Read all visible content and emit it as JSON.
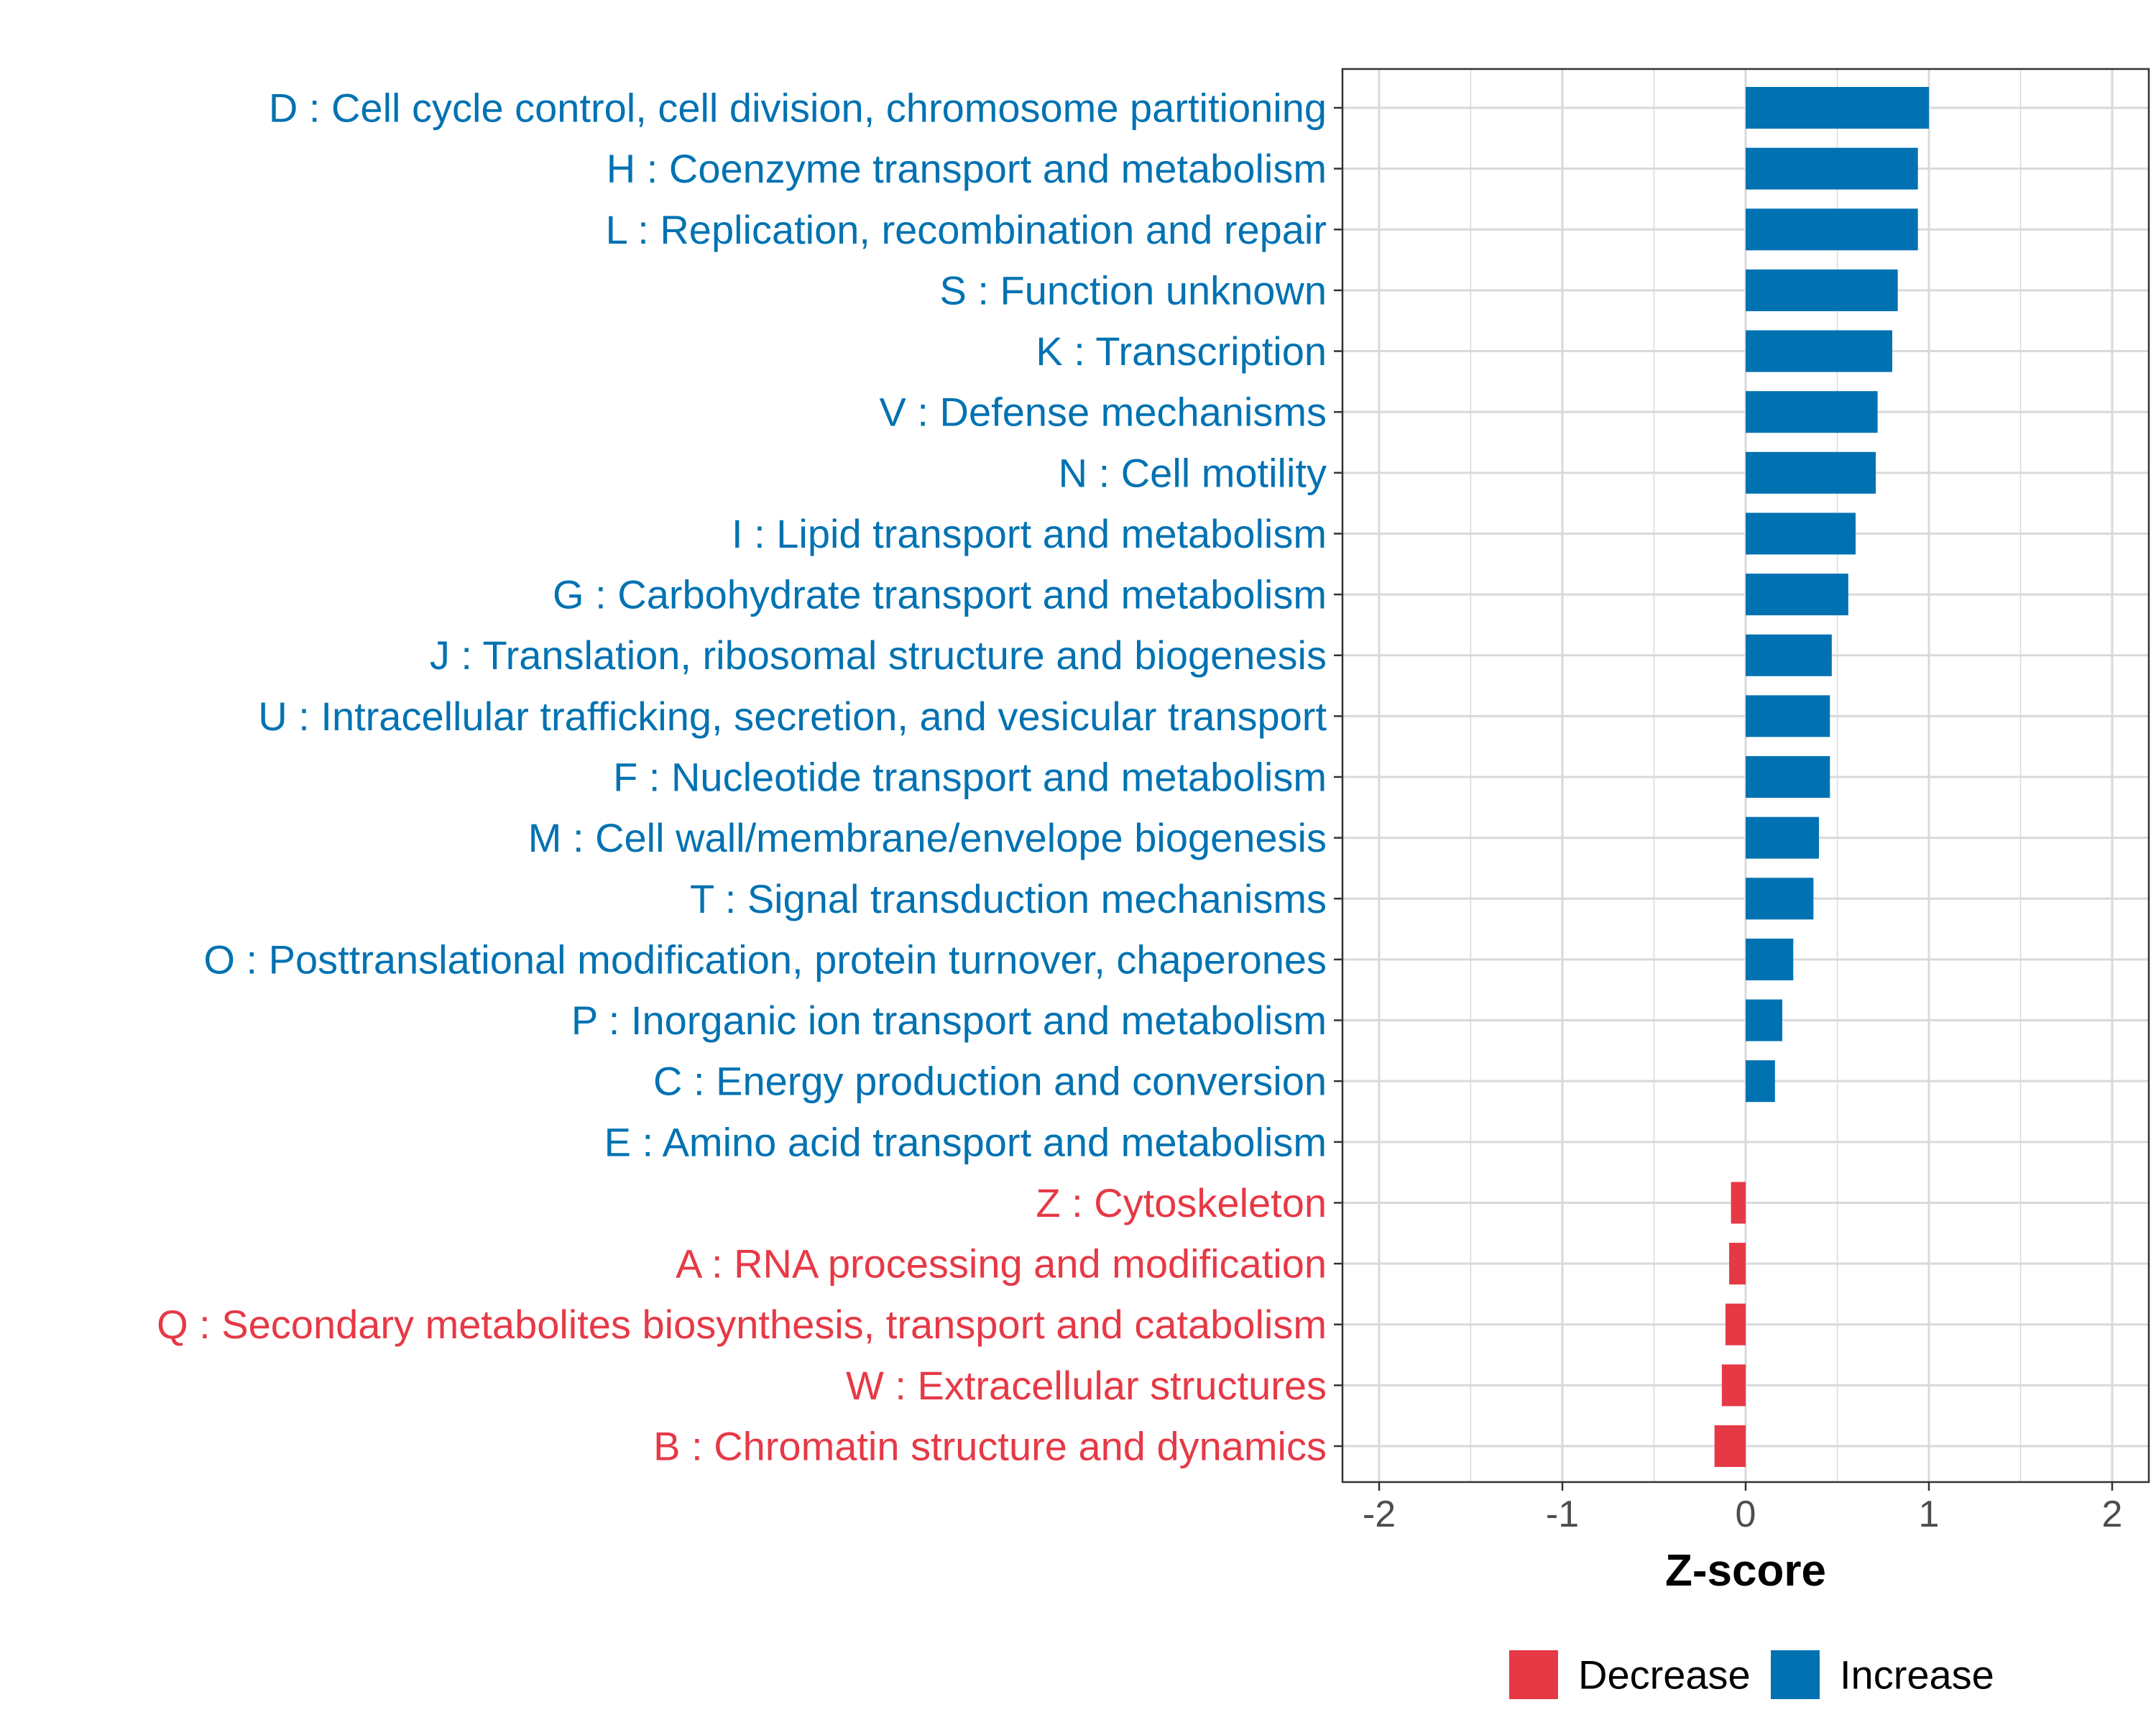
{
  "chart_data": {
    "type": "bar",
    "orientation": "horizontal",
    "xlabel": "Z-score",
    "xlim": [
      -2.2,
      2.2
    ],
    "xticks": [
      -2,
      -1,
      0,
      1,
      2
    ],
    "grid": true,
    "legend_position": "bottom",
    "colors": {
      "Decrease": "#e63946",
      "Increase": "#0072b2"
    },
    "legend": [
      {
        "name": "Decrease",
        "color": "#e63946"
      },
      {
        "name": "Increase",
        "color": "#0072b2"
      }
    ],
    "categories": [
      "D : Cell cycle control, cell division, chromosome partitioning",
      "H : Coenzyme transport and metabolism",
      "L : Replication, recombination and repair",
      "S : Function unknown",
      "K : Transcription",
      "V : Defense mechanisms",
      "N : Cell motility",
      "I : Lipid transport and metabolism",
      "G : Carbohydrate transport and metabolism",
      "J : Translation, ribosomal structure and biogenesis",
      "U : Intracellular trafficking, secretion, and vesicular transport",
      "F : Nucleotide transport and metabolism",
      "M : Cell wall/membrane/envelope biogenesis",
      "T : Signal transduction mechanisms",
      "O : Posttranslational modification, protein turnover, chaperones",
      "P : Inorganic ion transport and metabolism",
      "C : Energy production and conversion",
      "E : Amino acid transport and metabolism",
      "Z : Cytoskeleton",
      "A : RNA processing and modification",
      "Q : Secondary metabolites biosynthesis, transport and catabolism",
      "W : Extracellular structures",
      "B : Chromatin structure and dynamics"
    ],
    "values": [
      1.0,
      0.94,
      0.94,
      0.83,
      0.8,
      0.72,
      0.71,
      0.6,
      0.56,
      0.47,
      0.46,
      0.46,
      0.4,
      0.37,
      0.26,
      0.2,
      0.16,
      0.0,
      -0.08,
      -0.09,
      -0.11,
      -0.13,
      -0.17
    ],
    "groups": [
      "Increase",
      "Increase",
      "Increase",
      "Increase",
      "Increase",
      "Increase",
      "Increase",
      "Increase",
      "Increase",
      "Increase",
      "Increase",
      "Increase",
      "Increase",
      "Increase",
      "Increase",
      "Increase",
      "Increase",
      "Increase",
      "Decrease",
      "Decrease",
      "Decrease",
      "Decrease",
      "Decrease"
    ]
  }
}
